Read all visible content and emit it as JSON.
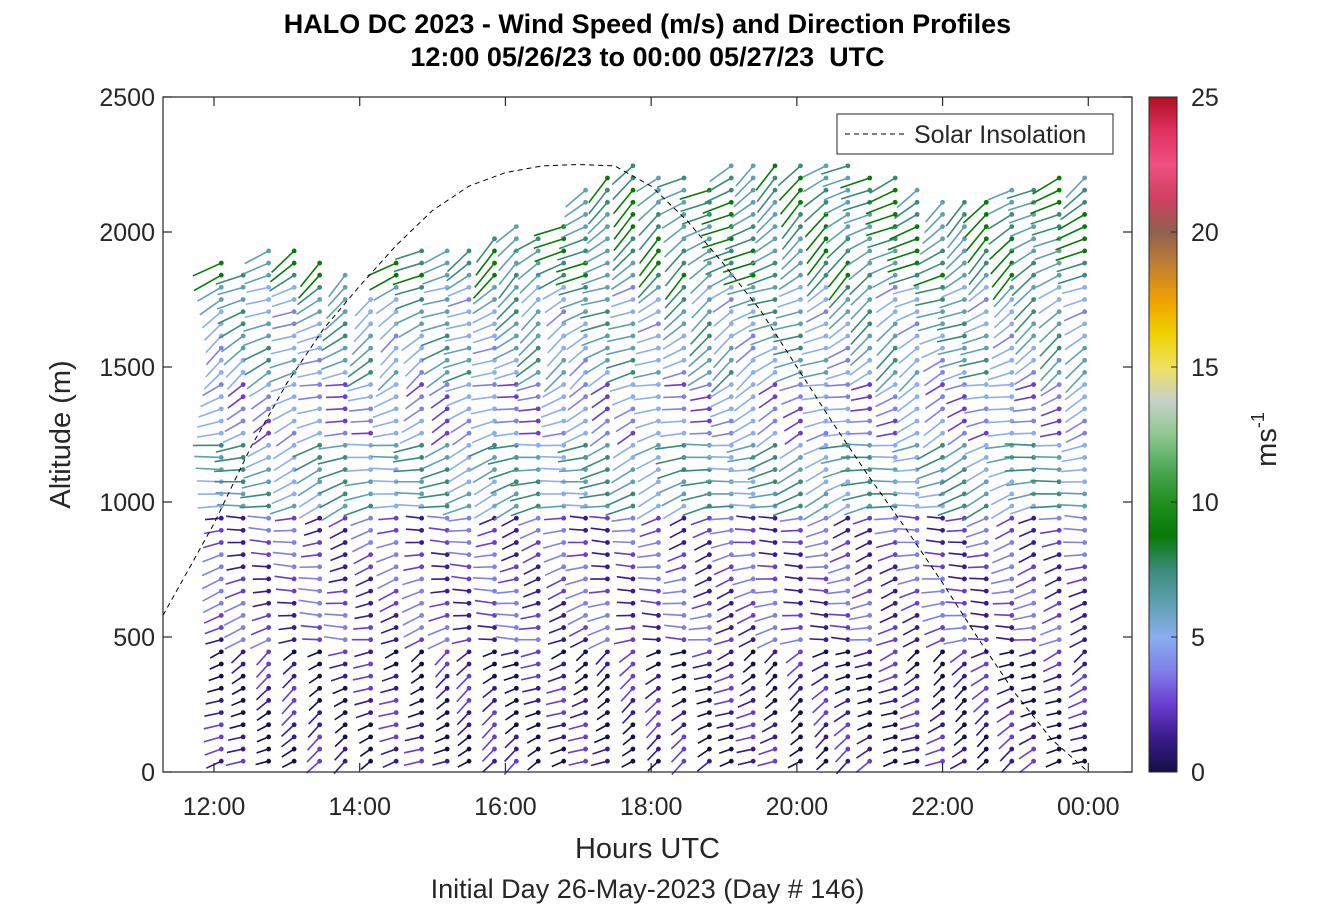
{
  "chart_data": {
    "type": "scatter",
    "title": "HALO DC 2023 - Wind Speed (m/s) and Direction Profiles",
    "subtitle": "12:00 05/26/23 to 00:00 05/27/23  UTC",
    "xlabel": "Hours UTC",
    "x_sublabel": "Initial Day 26-May-2023 (Day # 146)",
    "ylabel": "Altitude (m)",
    "x_ticks": [
      "12:00",
      "14:00",
      "16:00",
      "18:00",
      "20:00",
      "22:00",
      "00:00"
    ],
    "x_tick_hours": [
      12,
      14,
      16,
      18,
      20,
      22,
      24
    ],
    "xlim_hours": [
      11.3,
      24.6
    ],
    "ylim": [
      0,
      2500
    ],
    "y_ticks": [
      0,
      500,
      1000,
      1500,
      2000,
      2500
    ],
    "legend": {
      "entries": [
        "Solar Insolation"
      ],
      "placement": "top-right"
    },
    "colorbar": {
      "label": "ms",
      "label_exponent": "-1",
      "range": [
        0,
        25
      ],
      "ticks": [
        0,
        5,
        10,
        15,
        20,
        25
      ],
      "colors": [
        "#141046",
        "#3a1a8a",
        "#6a3dd0",
        "#7f80e8",
        "#8aaef0",
        "#5fa0b0",
        "#3a8a7a",
        "#087a08",
        "#20901f",
        "#50a858",
        "#90c890",
        "#c8d0c8",
        "#f0e060",
        "#f0d000",
        "#f0a000",
        "#c08030",
        "#906050",
        "#d04060",
        "#f05080",
        "#e03060",
        "#b01020"
      ]
    },
    "solar_insolation": {
      "style": "dashed",
      "hours": [
        11.3,
        12,
        12.5,
        13,
        13.5,
        14,
        14.5,
        15,
        15.5,
        16,
        16.5,
        17,
        17.5,
        18,
        18.5,
        19,
        19.5,
        20,
        20.5,
        21,
        21.5,
        22,
        22.5,
        23,
        23.5,
        24
      ],
      "altitude": [
        580,
        920,
        1200,
        1440,
        1640,
        1800,
        1950,
        2080,
        2170,
        2220,
        2245,
        2250,
        2245,
        2170,
        2040,
        1880,
        1710,
        1500,
        1290,
        1090,
        900,
        700,
        490,
        290,
        120,
        0
      ]
    },
    "profile_hours": [
      12.1,
      12.4,
      12.75,
      13.1,
      13.45,
      13.8,
      14.15,
      14.5,
      14.85,
      15.2,
      15.5,
      15.85,
      16.15,
      16.45,
      16.8,
      17.1,
      17.4,
      17.75,
      18.1,
      18.45,
      18.8,
      19.1,
      19.4,
      19.7,
      20.05,
      20.4,
      20.7,
      21.0,
      21.35,
      21.65,
      22.0,
      22.3,
      22.6,
      22.95,
      23.25,
      23.6,
      23.95
    ],
    "profile_top_altitude_m": [
      1900,
      1880,
      1960,
      1960,
      1920,
      1850,
      1780,
      1900,
      1950,
      1950,
      1950,
      2000,
      2050,
      2000,
      2060,
      2180,
      2220,
      2250,
      2220,
      2200,
      2180,
      2260,
      2260,
      2270,
      2270,
      2270,
      2260,
      2230,
      2200,
      2160,
      2130,
      2140,
      2150,
      2160,
      2180,
      2200,
      2220
    ],
    "speed_bands": [
      {
        "altitude_range": [
          0,
          450
        ],
        "speed_ms": 1.5,
        "direction_deg": 240
      },
      {
        "altitude_range": [
          450,
          950
        ],
        "speed_ms": 3.0,
        "direction_deg": 260
      },
      {
        "altitude_range": [
          950,
          1250
        ],
        "speed_ms": 6.5,
        "direction_deg": 255
      },
      {
        "altitude_range": [
          1250,
          1450
        ],
        "speed_ms": 4.5,
        "direction_deg": 250
      },
      {
        "altitude_range": [
          1450,
          1800
        ],
        "speed_ms": 6.0,
        "direction_deg": 240
      },
      {
        "altitude_range": [
          1800,
          2300
        ],
        "speed_ms": 7.5,
        "direction_deg": 235
      }
    ],
    "grid": false
  }
}
